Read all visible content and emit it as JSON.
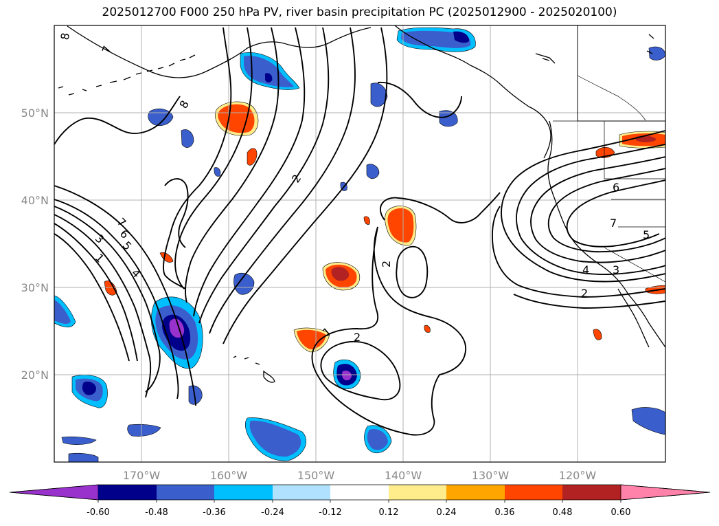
{
  "title": "2025012700 F000 250 hPa PV, river basin precipitation PC (2025012900 - 2025020100)",
  "map": {
    "lon_ticks": [
      {
        "lon": -170,
        "label": "170°W"
      },
      {
        "lon": -160,
        "label": "160°W"
      },
      {
        "lon": -150,
        "label": "150°W"
      },
      {
        "lon": -140,
        "label": "140°W"
      },
      {
        "lon": -130,
        "label": "130°W"
      },
      {
        "lon": -120,
        "label": "120°W"
      }
    ],
    "lat_ticks": [
      {
        "lat": 50,
        "label": "50°N"
      },
      {
        "lat": 40,
        "label": "40°N"
      },
      {
        "lat": 30,
        "label": "30°N"
      },
      {
        "lat": 20,
        "label": "20°N"
      }
    ],
    "extent": {
      "lon_min": -180,
      "lon_max": -110,
      "lat_min": 10,
      "lat_max": 60
    },
    "gridlines": true,
    "pv_contour_labels": [
      "8",
      "7",
      "8",
      "2",
      "7",
      "6",
      "5",
      "3",
      "1",
      "4",
      "2",
      "1",
      "2",
      "6",
      "7",
      "5",
      "4",
      "3",
      "2"
    ]
  },
  "colorbar": {
    "ticks": [
      "-0.60",
      "-0.48",
      "-0.36",
      "-0.24",
      "-0.12",
      "0.12",
      "0.24",
      "0.36",
      "0.48",
      "0.60"
    ],
    "colors": [
      "#9932cc",
      "#00008b",
      "#3a5fcd",
      "#00bfff",
      "#b0e2ff",
      "#ffffff",
      "#ffec8b",
      "#ffa500",
      "#ff4500",
      "#b22222",
      "#ff82ab"
    ]
  }
}
